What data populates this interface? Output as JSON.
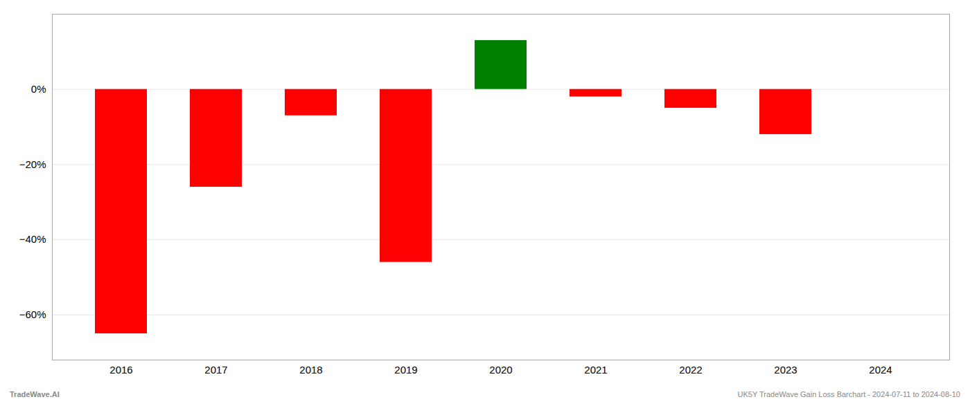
{
  "chart_data": {
    "type": "bar",
    "categories": [
      "2016",
      "2017",
      "2018",
      "2019",
      "2020",
      "2021",
      "2022",
      "2023",
      "2024"
    ],
    "values": [
      -65.0,
      -26.0,
      -7.0,
      -46.0,
      13.0,
      -2.0,
      -5.0,
      -12.0,
      0.0
    ],
    "colors": [
      "#ff0000",
      "#ff0000",
      "#ff0000",
      "#ff0000",
      "#008000",
      "#ff0000",
      "#ff0000",
      "#ff0000",
      "#ff0000"
    ],
    "ylim": [
      -72,
      20
    ],
    "yticks": [
      {
        "value": 0,
        "label": "0%"
      },
      {
        "value": -20,
        "label": "−20%"
      },
      {
        "value": -40,
        "label": "−40%"
      },
      {
        "value": -60,
        "label": "−60%"
      }
    ],
    "grid": true,
    "annotations": [
      "TradeWave.AI",
      "UK5Y TradeWave Gain Loss Barchart - 2024-07-11 to 2024-08-10"
    ]
  }
}
